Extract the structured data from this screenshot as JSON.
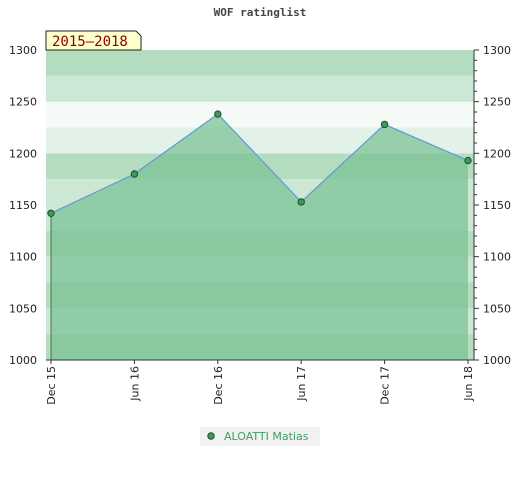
{
  "chart_data": {
    "type": "area",
    "title": "WOF ratinglist",
    "period_label": "2015–2018",
    "categories": [
      "Dec 15",
      "Jun 16",
      "Dec 16",
      "Jun 17",
      "Dec 17",
      "Jun 18"
    ],
    "series": [
      {
        "name": "ALOATTI Matias",
        "values": [
          1142,
          1180,
          1238,
          1153,
          1228,
          1193
        ]
      }
    ],
    "ylim": [
      1000,
      1300
    ],
    "yticks": [
      1000,
      1050,
      1100,
      1150,
      1200,
      1250,
      1300
    ],
    "xlabel": "",
    "ylabel": "",
    "grid": true,
    "legend_position": "bottom",
    "colors": {
      "line": "#5b9bd5",
      "area": "#7cc395",
      "marker": "#3a9a5a",
      "legend_text": "#3f9f5f",
      "period_bg": "#ffffcc",
      "period_text": "#8b0000"
    }
  }
}
